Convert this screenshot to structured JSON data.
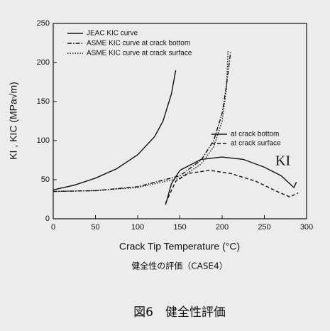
{
  "chart_data": {
    "type": "line",
    "xlabel": "Crack Tip Temperature  (°C)",
    "ylabel": "KI , KIC  (MPa√m)",
    "caption": "健全性の評価（CASE4）",
    "figure_title": "図6　健全性評価",
    "annotation": "KI",
    "xlim": [
      0,
      300
    ],
    "xticks": [
      0,
      50,
      100,
      150,
      200,
      250,
      300
    ],
    "ylim": [
      0,
      250
    ],
    "yticks": [
      0,
      50,
      100,
      150,
      200,
      250
    ],
    "series": [
      {
        "name": "JEAC KIC curve",
        "color": "#111111",
        "dash": "solid",
        "x": [
          0,
          25,
          50,
          75,
          100,
          120,
          130,
          140,
          145
        ],
        "values": [
          37,
          43,
          52,
          64,
          82,
          105,
          125,
          160,
          190
        ]
      },
      {
        "name": "ASME KIC curve at crack bottom",
        "color": "#111111",
        "dash": "dashdot",
        "x": [
          0,
          50,
          100,
          150,
          175,
          190,
          200,
          205,
          210
        ],
        "values": [
          35,
          36,
          41,
          55,
          75,
          100,
          135,
          170,
          213
        ]
      },
      {
        "name": "ASME KIC curve at crack surface",
        "color": "#111111",
        "dash": "dotted",
        "x": [
          0,
          50,
          100,
          150,
          175,
          190,
          200,
          205,
          207
        ],
        "values": [
          35,
          36,
          40,
          52,
          70,
          92,
          125,
          165,
          215
        ]
      },
      {
        "name": "at crack bottom",
        "color": "#111111",
        "dash": "solid",
        "x": [
          133,
          140,
          150,
          175,
          200,
          225,
          250,
          270,
          285,
          288
        ],
        "values": [
          18,
          45,
          62,
          76,
          79,
          76,
          66,
          55,
          40,
          47
        ]
      },
      {
        "name": "at crack surface",
        "color": "#111111",
        "dash": "dashed",
        "x": [
          133,
          145,
          160,
          185,
          210,
          240,
          265,
          280,
          290
        ],
        "values": [
          20,
          48,
          58,
          62,
          58,
          48,
          35,
          28,
          33
        ]
      }
    ]
  }
}
